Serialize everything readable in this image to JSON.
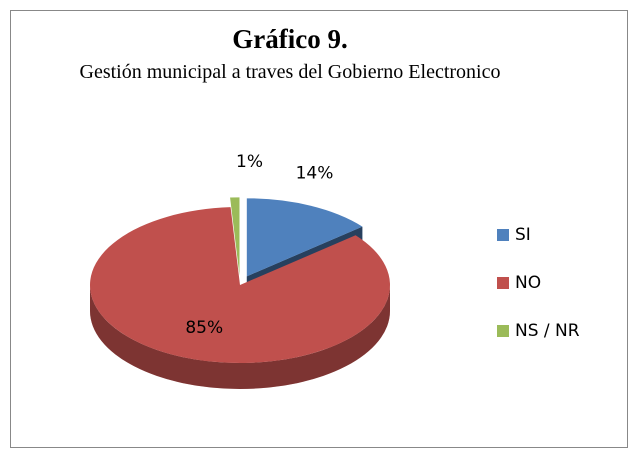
{
  "chart_data": {
    "type": "pie",
    "title": "Gráfico 9.",
    "subtitle": "Gestión municipal a traves del Gobierno Electronico",
    "categories": [
      "SI",
      "NO",
      "NS / NR"
    ],
    "values": [
      14,
      85,
      1
    ],
    "value_labels": [
      "14%",
      "85%",
      "1%"
    ],
    "colors": [
      "#4f81bd",
      "#c0504d",
      "#9bbb59"
    ],
    "exploded": [
      true,
      false,
      true
    ],
    "legend": "right"
  }
}
